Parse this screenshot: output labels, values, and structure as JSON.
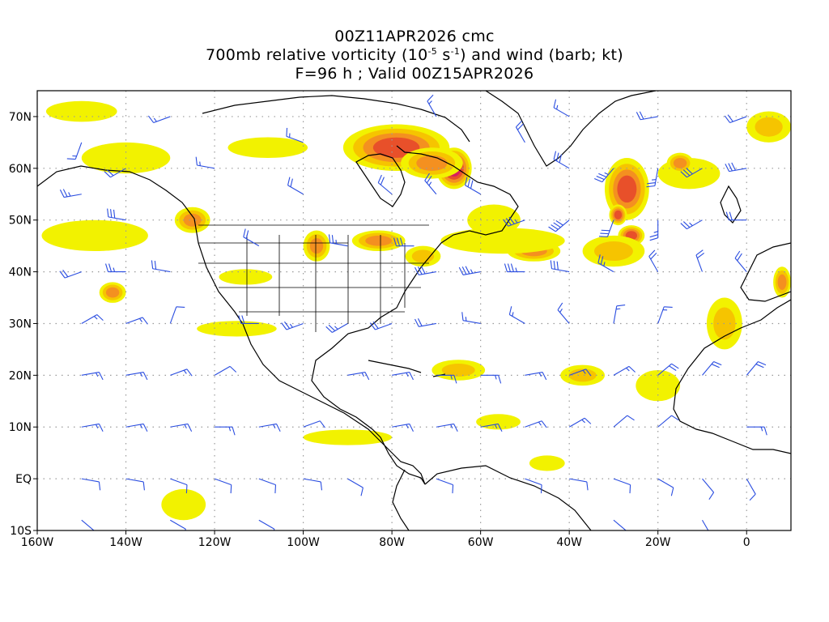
{
  "title": {
    "line1": "00Z11APR2026 cmc",
    "line2_prefix": "700mb relative vorticity (10",
    "line2_exp1": "-5",
    "line2_mid": " s",
    "line2_exp2": "-1",
    "line2_suffix": ") and wind (barb; kt)",
    "line3": "F=96 h ; Valid 00Z15APR2026"
  },
  "map": {
    "lon_range": [
      -160,
      10
    ],
    "lat_range": [
      -10,
      75
    ],
    "grid": "dotted",
    "lat_ticks": [
      {
        "lat": 70,
        "label": "70N"
      },
      {
        "lat": 60,
        "label": "60N"
      },
      {
        "lat": 50,
        "label": "50N"
      },
      {
        "lat": 40,
        "label": "40N"
      },
      {
        "lat": 30,
        "label": "30N"
      },
      {
        "lat": 20,
        "label": "20N"
      },
      {
        "lat": 10,
        "label": "10N"
      },
      {
        "lat": 0,
        "label": "EQ"
      },
      {
        "lat": -10,
        "label": "10S"
      }
    ],
    "lon_ticks": [
      {
        "lon": -160,
        "label": "160W"
      },
      {
        "lon": -140,
        "label": "140W"
      },
      {
        "lon": -120,
        "label": "120W"
      },
      {
        "lon": -100,
        "label": "100W"
      },
      {
        "lon": -80,
        "label": "80W"
      },
      {
        "lon": -60,
        "label": "60W"
      },
      {
        "lon": -40,
        "label": "40W"
      },
      {
        "lon": -20,
        "label": "20W"
      },
      {
        "lon": 0,
        "label": "0"
      }
    ],
    "colors": {
      "level1": "#f2f200",
      "level2": "#f6c400",
      "level3": "#f49020",
      "level4": "#e8502a",
      "level5": "#d81f5e",
      "barb": "#2a4de0",
      "coast": "#000000",
      "grid": "#9a9a9a"
    },
    "vorticity_blobs": [
      {
        "lon": -79,
        "lat": 64,
        "rx": 12,
        "ry": 4.5,
        "level": 4
      },
      {
        "lon": -66,
        "lat": 60,
        "rx": 4,
        "ry": 4,
        "level": 5
      },
      {
        "lon": -71,
        "lat": 61,
        "rx": 7,
        "ry": 3,
        "level": 3
      },
      {
        "lon": -27,
        "lat": 56,
        "rx": 5,
        "ry": 6,
        "level": 4
      },
      {
        "lon": -29,
        "lat": 51,
        "rx": 2,
        "ry": 2,
        "level": 4
      },
      {
        "lon": -26,
        "lat": 47,
        "rx": 3,
        "ry": 2,
        "level": 4
      },
      {
        "lon": -30,
        "lat": 44,
        "rx": 7,
        "ry": 3,
        "level": 2
      },
      {
        "lon": -48,
        "lat": 44,
        "rx": 6,
        "ry": 2,
        "level": 3
      },
      {
        "lon": -55,
        "lat": 46,
        "rx": 14,
        "ry": 2.5,
        "level": 1
      },
      {
        "lon": -125,
        "lat": 50,
        "rx": 4,
        "ry": 2.5,
        "level": 3
      },
      {
        "lon": -147,
        "lat": 47,
        "rx": 12,
        "ry": 3,
        "level": 1
      },
      {
        "lon": -143,
        "lat": 36,
        "rx": 3,
        "ry": 2,
        "level": 3
      },
      {
        "lon": -97,
        "lat": 45,
        "rx": 3,
        "ry": 3,
        "level": 3
      },
      {
        "lon": -83,
        "lat": 46,
        "rx": 6,
        "ry": 2,
        "level": 3
      },
      {
        "lon": -73,
        "lat": 43,
        "rx": 4,
        "ry": 2,
        "level": 2
      },
      {
        "lon": -113,
        "lat": 39,
        "rx": 6,
        "ry": 1.5,
        "level": 1
      },
      {
        "lon": -115,
        "lat": 29,
        "rx": 9,
        "ry": 1.5,
        "level": 1
      },
      {
        "lon": -65,
        "lat": 21,
        "rx": 6,
        "ry": 2,
        "level": 2
      },
      {
        "lon": -37,
        "lat": 20,
        "rx": 5,
        "ry": 2,
        "level": 2
      },
      {
        "lon": -20,
        "lat": 18,
        "rx": 5,
        "ry": 3,
        "level": 1
      },
      {
        "lon": -5,
        "lat": 30,
        "rx": 4,
        "ry": 5,
        "level": 2
      },
      {
        "lon": 8,
        "lat": 38,
        "rx": 2,
        "ry": 3,
        "level": 3
      },
      {
        "lon": -13,
        "lat": 59,
        "rx": 7,
        "ry": 3,
        "level": 1
      },
      {
        "lon": 5,
        "lat": 68,
        "rx": 5,
        "ry": 3,
        "level": 2
      },
      {
        "lon": -127,
        "lat": -5,
        "rx": 5,
        "ry": 3,
        "level": 1
      },
      {
        "lon": -140,
        "lat": 62,
        "rx": 10,
        "ry": 3,
        "level": 1
      },
      {
        "lon": -150,
        "lat": 71,
        "rx": 8,
        "ry": 2,
        "level": 1
      },
      {
        "lon": -108,
        "lat": 64,
        "rx": 9,
        "ry": 2,
        "level": 1
      },
      {
        "lon": -57,
        "lat": 50,
        "rx": 6,
        "ry": 3,
        "level": 1
      },
      {
        "lon": -90,
        "lat": 8,
        "rx": 10,
        "ry": 1.5,
        "level": 1
      },
      {
        "lon": -56,
        "lat": 11,
        "rx": 5,
        "ry": 1.5,
        "level": 1
      },
      {
        "lon": -45,
        "lat": 3,
        "rx": 4,
        "ry": 1.5,
        "level": 1
      },
      {
        "lon": -15,
        "lat": 61,
        "rx": 3,
        "ry": 2,
        "level": 3
      }
    ],
    "barbs": [
      {
        "lon": -150,
        "lat": 40,
        "dir": 250,
        "spd": 20
      },
      {
        "lon": -140,
        "lat": 40,
        "dir": 270,
        "spd": 25
      },
      {
        "lon": -130,
        "lat": 40,
        "dir": 280,
        "spd": 20
      },
      {
        "lon": -150,
        "lat": 30,
        "dir": 60,
        "spd": 15
      },
      {
        "lon": -140,
        "lat": 30,
        "dir": 70,
        "spd": 15
      },
      {
        "lon": -130,
        "lat": 30,
        "dir": 20,
        "spd": 10
      },
      {
        "lon": -150,
        "lat": 20,
        "dir": 80,
        "spd": 15
      },
      {
        "lon": -140,
        "lat": 20,
        "dir": 80,
        "spd": 15
      },
      {
        "lon": -130,
        "lat": 20,
        "dir": 70,
        "spd": 15
      },
      {
        "lon": -120,
        "lat": 20,
        "dir": 60,
        "spd": 10
      },
      {
        "lon": -150,
        "lat": 10,
        "dir": 80,
        "spd": 15
      },
      {
        "lon": -140,
        "lat": 10,
        "dir": 80,
        "spd": 15
      },
      {
        "lon": -130,
        "lat": 10,
        "dir": 80,
        "spd": 15
      },
      {
        "lon": -120,
        "lat": 10,
        "dir": 90,
        "spd": 15
      },
      {
        "lon": -110,
        "lat": 10,
        "dir": 80,
        "spd": 15
      },
      {
        "lon": -100,
        "lat": 10,
        "dir": 70,
        "spd": 10
      },
      {
        "lon": -150,
        "lat": 0,
        "dir": 100,
        "spd": 10
      },
      {
        "lon": -140,
        "lat": 0,
        "dir": 100,
        "spd": 10
      },
      {
        "lon": -130,
        "lat": 0,
        "dir": 110,
        "spd": 10
      },
      {
        "lon": -120,
        "lat": 0,
        "dir": 110,
        "spd": 10
      },
      {
        "lon": -110,
        "lat": 0,
        "dir": 110,
        "spd": 10
      },
      {
        "lon": -100,
        "lat": 0,
        "dir": 100,
        "spd": 10
      },
      {
        "lon": -90,
        "lat": 0,
        "dir": 120,
        "spd": 10
      },
      {
        "lon": -140,
        "lat": 50,
        "dir": 280,
        "spd": 30
      },
      {
        "lon": -150,
        "lat": 55,
        "dir": 260,
        "spd": 25
      },
      {
        "lon": -140,
        "lat": 60,
        "dir": 240,
        "spd": 20
      },
      {
        "lon": -150,
        "lat": 65,
        "dir": 200,
        "spd": 15
      },
      {
        "lon": -110,
        "lat": 30,
        "dir": 270,
        "spd": 20
      },
      {
        "lon": -100,
        "lat": 30,
        "dir": 250,
        "spd": 25
      },
      {
        "lon": -90,
        "lat": 30,
        "dir": 240,
        "spd": 25
      },
      {
        "lon": -80,
        "lat": 30,
        "dir": 250,
        "spd": 20
      },
      {
        "lon": -70,
        "lat": 30,
        "dir": 260,
        "spd": 20
      },
      {
        "lon": -60,
        "lat": 30,
        "dir": 280,
        "spd": 15
      },
      {
        "lon": -50,
        "lat": 30,
        "dir": 300,
        "spd": 15
      },
      {
        "lon": -40,
        "lat": 30,
        "dir": 320,
        "spd": 15
      },
      {
        "lon": -30,
        "lat": 30,
        "dir": 10,
        "spd": 15
      },
      {
        "lon": -20,
        "lat": 30,
        "dir": 20,
        "spd": 15
      },
      {
        "lon": -90,
        "lat": 20,
        "dir": 80,
        "spd": 15
      },
      {
        "lon": -80,
        "lat": 20,
        "dir": 80,
        "spd": 15
      },
      {
        "lon": -70,
        "lat": 20,
        "dir": 90,
        "spd": 15
      },
      {
        "lon": -60,
        "lat": 20,
        "dir": 90,
        "spd": 15
      },
      {
        "lon": -50,
        "lat": 20,
        "dir": 80,
        "spd": 15
      },
      {
        "lon": -40,
        "lat": 20,
        "dir": 70,
        "spd": 15
      },
      {
        "lon": -30,
        "lat": 20,
        "dir": 60,
        "spd": 15
      },
      {
        "lon": -20,
        "lat": 20,
        "dir": 50,
        "spd": 20
      },
      {
        "lon": -10,
        "lat": 20,
        "dir": 40,
        "spd": 20
      },
      {
        "lon": 0,
        "lat": 20,
        "dir": 40,
        "spd": 20
      },
      {
        "lon": -80,
        "lat": 10,
        "dir": 80,
        "spd": 15
      },
      {
        "lon": -70,
        "lat": 10,
        "dir": 80,
        "spd": 15
      },
      {
        "lon": -60,
        "lat": 10,
        "dir": 80,
        "spd": 15
      },
      {
        "lon": -50,
        "lat": 10,
        "dir": 70,
        "spd": 15
      },
      {
        "lon": -40,
        "lat": 10,
        "dir": 60,
        "spd": 15
      },
      {
        "lon": -30,
        "lat": 10,
        "dir": 50,
        "spd": 10
      },
      {
        "lon": -20,
        "lat": 10,
        "dir": 50,
        "spd": 10
      },
      {
        "lon": 0,
        "lat": 10,
        "dir": 90,
        "spd": 15
      },
      {
        "lon": -70,
        "lat": 0,
        "dir": 110,
        "spd": 10
      },
      {
        "lon": -50,
        "lat": 0,
        "dir": 110,
        "spd": 10
      },
      {
        "lon": -40,
        "lat": 0,
        "dir": 100,
        "spd": 10
      },
      {
        "lon": -30,
        "lat": 0,
        "dir": 110,
        "spd": 10
      },
      {
        "lon": -20,
        "lat": 0,
        "dir": 120,
        "spd": 10
      },
      {
        "lon": -10,
        "lat": 0,
        "dir": 140,
        "spd": 10
      },
      {
        "lon": 0,
        "lat": 0,
        "dir": 150,
        "spd": 10
      },
      {
        "lon": -50,
        "lat": 40,
        "dir": 270,
        "spd": 35
      },
      {
        "lon": -40,
        "lat": 40,
        "dir": 280,
        "spd": 30
      },
      {
        "lon": -30,
        "lat": 40,
        "dir": 300,
        "spd": 25
      },
      {
        "lon": -20,
        "lat": 40,
        "dir": 330,
        "spd": 20
      },
      {
        "lon": -10,
        "lat": 40,
        "dir": 340,
        "spd": 20
      },
      {
        "lon": 0,
        "lat": 40,
        "dir": 320,
        "spd": 20
      },
      {
        "lon": -60,
        "lat": 40,
        "dir": 260,
        "spd": 35
      },
      {
        "lon": -70,
        "lat": 40,
        "dir": 260,
        "spd": 30
      },
      {
        "lon": -50,
        "lat": 50,
        "dir": 250,
        "spd": 35
      },
      {
        "lon": -40,
        "lat": 50,
        "dir": 230,
        "spd": 40
      },
      {
        "lon": -30,
        "lat": 50,
        "dir": 200,
        "spd": 30
      },
      {
        "lon": -20,
        "lat": 50,
        "dir": 180,
        "spd": 25
      },
      {
        "lon": -10,
        "lat": 50,
        "dir": 240,
        "spd": 25
      },
      {
        "lon": 0,
        "lat": 50,
        "dir": 270,
        "spd": 20
      },
      {
        "lon": -40,
        "lat": 60,
        "dir": 300,
        "spd": 30
      },
      {
        "lon": -30,
        "lat": 60,
        "dir": 220,
        "spd": 35
      },
      {
        "lon": -20,
        "lat": 60,
        "dir": 190,
        "spd": 25
      },
      {
        "lon": -10,
        "lat": 60,
        "dir": 240,
        "spd": 30
      },
      {
        "lon": 0,
        "lat": 60,
        "dir": 260,
        "spd": 30
      },
      {
        "lon": -50,
        "lat": 65,
        "dir": 330,
        "spd": 20
      },
      {
        "lon": -40,
        "lat": 70,
        "dir": 300,
        "spd": 15
      },
      {
        "lon": -20,
        "lat": 70,
        "dir": 260,
        "spd": 20
      },
      {
        "lon": 0,
        "lat": 70,
        "dir": 250,
        "spd": 20
      },
      {
        "lon": -110,
        "lat": 45,
        "dir": 300,
        "spd": 20
      },
      {
        "lon": -90,
        "lat": 45,
        "dir": 280,
        "spd": 25
      },
      {
        "lon": -75,
        "lat": 45,
        "dir": 270,
        "spd": 30
      },
      {
        "lon": -100,
        "lat": 55,
        "dir": 300,
        "spd": 20
      },
      {
        "lon": -80,
        "lat": 55,
        "dir": 310,
        "spd": 20
      },
      {
        "lon": -70,
        "lat": 55,
        "dir": 320,
        "spd": 25
      },
      {
        "lon": -60,
        "lat": 55,
        "dir": 300,
        "spd": 30
      },
      {
        "lon": -120,
        "lat": 60,
        "dir": 280,
        "spd": 15
      },
      {
        "lon": -100,
        "lat": 65,
        "dir": 290,
        "spd": 15
      },
      {
        "lon": -70,
        "lat": 70,
        "dir": 330,
        "spd": 15
      },
      {
        "lon": -130,
        "lat": 70,
        "dir": 250,
        "spd": 15
      },
      {
        "lon": -150,
        "lat": -8,
        "dir": 130,
        "spd": 10
      },
      {
        "lon": -130,
        "lat": -8,
        "dir": 120,
        "spd": 10
      },
      {
        "lon": -110,
        "lat": -8,
        "dir": 120,
        "spd": 10
      },
      {
        "lon": -30,
        "lat": -8,
        "dir": 130,
        "spd": 10
      },
      {
        "lon": -10,
        "lat": -8,
        "dir": 150,
        "spd": 10
      }
    ]
  }
}
